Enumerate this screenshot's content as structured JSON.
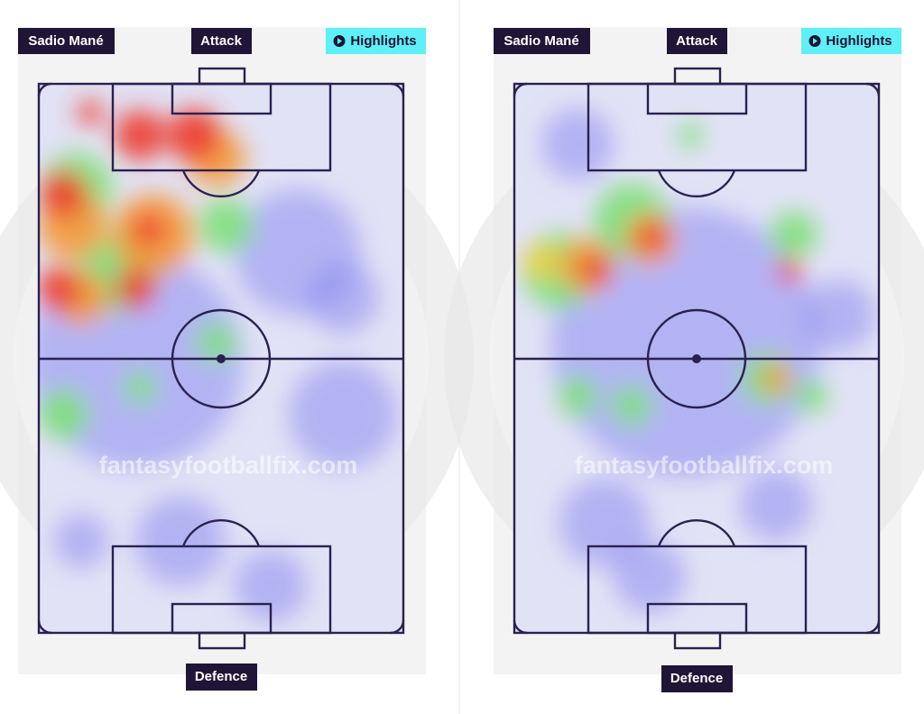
{
  "panels": [
    {
      "player": "Sadio Mané",
      "attack_label": "Attack",
      "highlights": "Highlights",
      "defence_label": "Defence",
      "watermark": "fantasyfootballfix.com"
    },
    {
      "player": "Sadio Mané",
      "attack_label": "Attack",
      "highlights": "Highlights",
      "defence_label": "Defence",
      "watermark": "fantasyfootballfix.com"
    }
  ]
}
